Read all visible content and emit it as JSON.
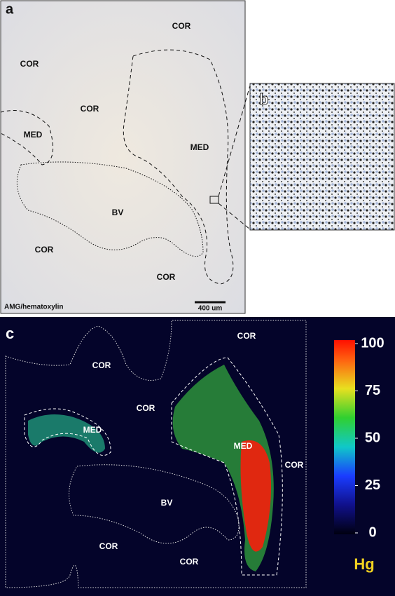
{
  "panel_a": {
    "label": "a",
    "regions": [
      "COR",
      "COR",
      "COR",
      "MED",
      "MED",
      "BV",
      "COR",
      "COR"
    ],
    "stain": "AMG/hematoxylin",
    "scale_bar": "400 um"
  },
  "panel_b": {
    "label": "b"
  },
  "panel_c": {
    "label": "c",
    "regions": [
      "COR",
      "COR",
      "COR",
      "MED",
      "MED",
      "COR",
      "BV",
      "COR",
      "COR"
    ],
    "colorbar": {
      "label": "Hg",
      "lim": [
        0,
        100
      ],
      "ticks": [
        0,
        25,
        50,
        75,
        100
      ]
    }
  }
}
